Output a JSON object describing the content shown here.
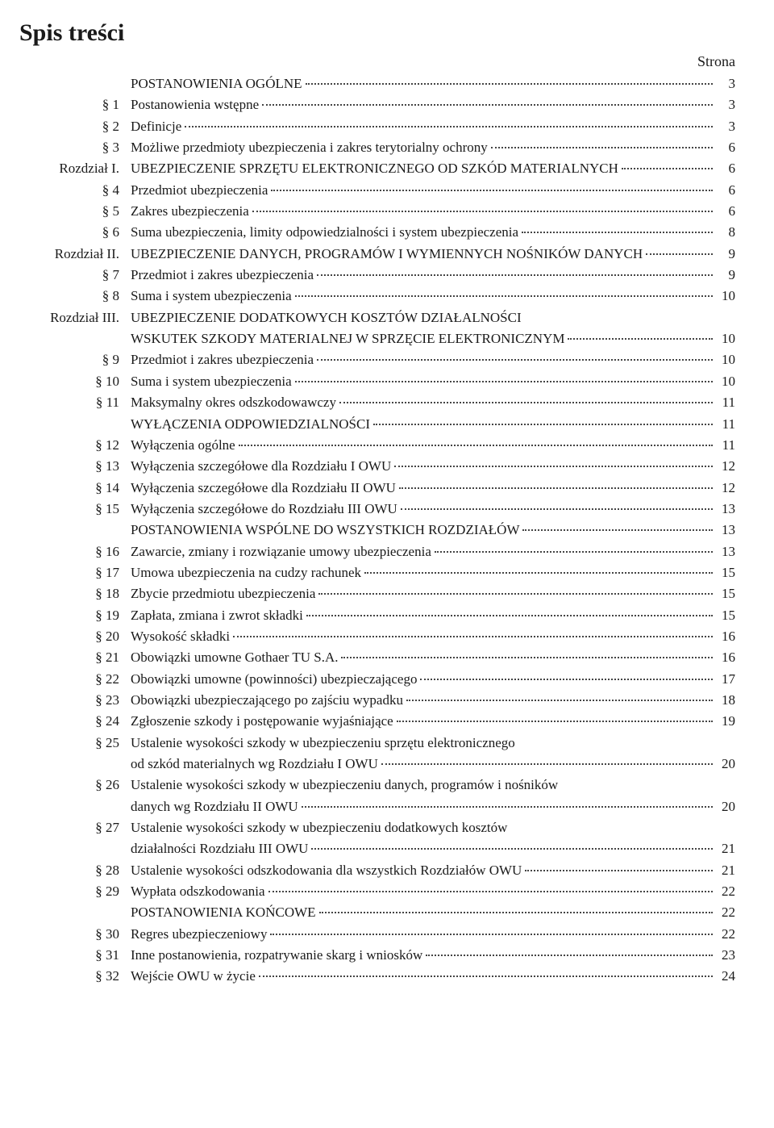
{
  "title": "Spis treści",
  "header_right": "Strona",
  "label_col_width": 138,
  "entries": [
    {
      "label": "",
      "text": "POSTANOWIENIA OGÓLNE",
      "page": "3"
    },
    {
      "label": "§ 1",
      "text": "Postanowienia wstępne",
      "page": "3"
    },
    {
      "label": "§ 2",
      "text": "Definicje",
      "page": "3"
    },
    {
      "label": "§ 3",
      "text": "Możliwe przedmioty ubezpieczenia i zakres terytorialny ochrony",
      "page": "6"
    },
    {
      "label": "Rozdział I.",
      "text": "UBEZPIECZENIE SPRZĘTU ELEKTRONICZNEGO OD SZKÓD MATERIALNYCH",
      "page": "6"
    },
    {
      "label": "§ 4",
      "text": "Przedmiot ubezpieczenia",
      "page": "6"
    },
    {
      "label": "§ 5",
      "text": "Zakres ubezpieczenia",
      "page": "6"
    },
    {
      "label": "§ 6",
      "text": "Suma ubezpieczenia, limity odpowiedzialności i system ubezpieczenia",
      "page": "8"
    },
    {
      "label": "Rozdział II.",
      "text": "UBEZPIECZENIE DANYCH, PROGRAMÓW I WYMIENNYCH NOŚNIKÓW DANYCH",
      "page": "9"
    },
    {
      "label": "§ 7",
      "text": "Przedmiot i zakres ubezpieczenia",
      "page": "9"
    },
    {
      "label": "§ 8",
      "text": "Suma i system ubezpieczenia",
      "page": "10"
    },
    {
      "label": "Rozdział III.",
      "text": "UBEZPIECZENIE DODATKOWYCH KOSZTÓW DZIAŁALNOŚCI",
      "no_page": true
    },
    {
      "label": "",
      "text": "WSKUTEK SZKODY MATERIALNEJ W SPRZĘCIE ELEKTRONICZNYM",
      "page": "10"
    },
    {
      "label": "§ 9",
      "text": "Przedmiot i zakres ubezpieczenia",
      "page": "10"
    },
    {
      "label": "§ 10",
      "text": "Suma i system ubezpieczenia",
      "page": "10"
    },
    {
      "label": "§ 11",
      "text": "Maksymalny okres odszkodowawczy",
      "page": "11"
    },
    {
      "label": "",
      "text": "WYŁĄCZENIA ODPOWIEDZIALNOŚCI",
      "page": "11"
    },
    {
      "label": "§ 12",
      "text": "Wyłączenia ogólne",
      "page": "11"
    },
    {
      "label": "§ 13",
      "text": "Wyłączenia szczegółowe dla Rozdziału I OWU",
      "page": "12"
    },
    {
      "label": "§ 14",
      "text": "Wyłączenia szczegółowe dla Rozdziału II OWU",
      "page": "12"
    },
    {
      "label": "§ 15",
      "text": "Wyłączenia szczegółowe do Rozdziału III OWU",
      "page": "13"
    },
    {
      "label": "",
      "text": "POSTANOWIENIA WSPÓLNE DO WSZYSTKICH ROZDZIAŁÓW",
      "page": "13"
    },
    {
      "label": "§ 16",
      "text": "Zawarcie, zmiany i rozwiązanie umowy ubezpieczenia",
      "page": "13"
    },
    {
      "label": "§ 17",
      "text": "Umowa ubezpieczenia na cudzy rachunek",
      "page": "15"
    },
    {
      "label": "§ 18",
      "text": "Zbycie przedmiotu ubezpieczenia",
      "page": "15"
    },
    {
      "label": "§ 19",
      "text": "Zapłata, zmiana i zwrot składki",
      "page": "15"
    },
    {
      "label": "§ 20",
      "text": "Wysokość składki",
      "page": "16"
    },
    {
      "label": "§ 21",
      "text": "Obowiązki umowne Gothaer TU S.A.",
      "page": "16"
    },
    {
      "label": "§ 22",
      "text": "Obowiązki umowne (powinności) ubezpieczającego",
      "page": "17"
    },
    {
      "label": "§ 23",
      "text": "Obowiązki ubezpieczającego po zajściu wypadku",
      "page": "18"
    },
    {
      "label": "§ 24",
      "text": "Zgłoszenie szkody i postępowanie wyjaśniające",
      "page": "19"
    },
    {
      "label": "§ 25",
      "text": "Ustalenie wysokości szkody w ubezpieczeniu sprzętu elektronicznego",
      "no_page": true
    },
    {
      "label": "",
      "text": "od szkód materialnych wg Rozdziału I OWU",
      "page": "20"
    },
    {
      "label": "§ 26",
      "text": "Ustalenie wysokości szkody w ubezpieczeniu danych, programów i nośników",
      "no_page": true
    },
    {
      "label": "",
      "text": "danych wg Rozdziału II OWU",
      "page": "20"
    },
    {
      "label": "§ 27",
      "text": "Ustalenie wysokości szkody w ubezpieczeniu dodatkowych kosztów",
      "no_page": true
    },
    {
      "label": "",
      "text": "działalności Rozdziału III OWU",
      "page": "21"
    },
    {
      "label": "§ 28",
      "text": "Ustalenie wysokości odszkodowania dla wszystkich Rozdziałów OWU",
      "page": "21"
    },
    {
      "label": "§ 29",
      "text": "Wypłata odszkodowania",
      "page": "22"
    },
    {
      "label": "",
      "text": "POSTANOWIENIA KOŃCOWE",
      "page": "22"
    },
    {
      "label": "§ 30",
      "text": "Regres ubezpieczeniowy",
      "page": "22"
    },
    {
      "label": "§ 31",
      "text": "Inne postanowienia, rozpatrywanie skarg i wniosków",
      "page": "23"
    },
    {
      "label": "§ 32",
      "text": "Wejście OWU w życie",
      "page": "24"
    }
  ]
}
